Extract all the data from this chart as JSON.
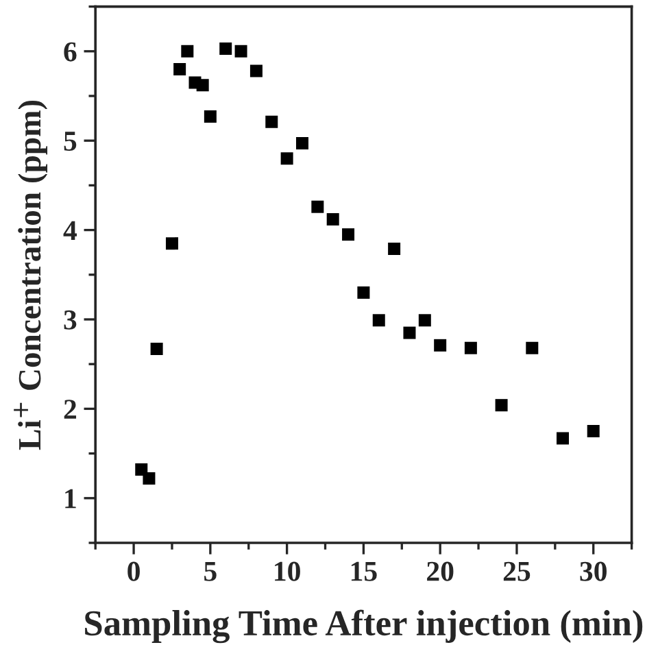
{
  "chart_data": {
    "type": "scatter",
    "xlabel": "Sampling Time After injection (min)",
    "ylabel": "Li$^{+}$ Concentration (ppm)",
    "x": [
      0.5,
      1,
      1.5,
      2.5,
      3,
      3.5,
      4,
      4.5,
      5,
      6,
      7,
      8,
      9,
      10,
      11,
      12,
      13,
      14,
      15,
      16,
      17,
      18,
      19,
      20,
      22,
      24,
      26,
      28,
      30
    ],
    "series": [
      {
        "color": "#000000",
        "values": [
          1.32,
          1.22,
          2.67,
          3.85,
          5.8,
          6.0,
          5.65,
          5.62,
          5.27,
          6.03,
          6.0,
          5.78,
          5.21,
          4.8,
          4.97,
          4.26,
          4.12,
          3.95,
          3.3,
          2.99,
          3.79,
          2.85,
          2.99,
          2.71,
          2.68,
          2.04,
          2.68,
          1.67,
          1.75
        ]
      }
    ],
    "marker": "square",
    "xlim": [
      -2.5,
      32.5
    ],
    "ylim": [
      0.5,
      6.5
    ],
    "xticks": [
      0,
      5,
      10,
      15,
      20,
      25,
      30
    ],
    "yticks": [
      1,
      2,
      3,
      4,
      5,
      6
    ],
    "grid": false,
    "legend": false
  }
}
